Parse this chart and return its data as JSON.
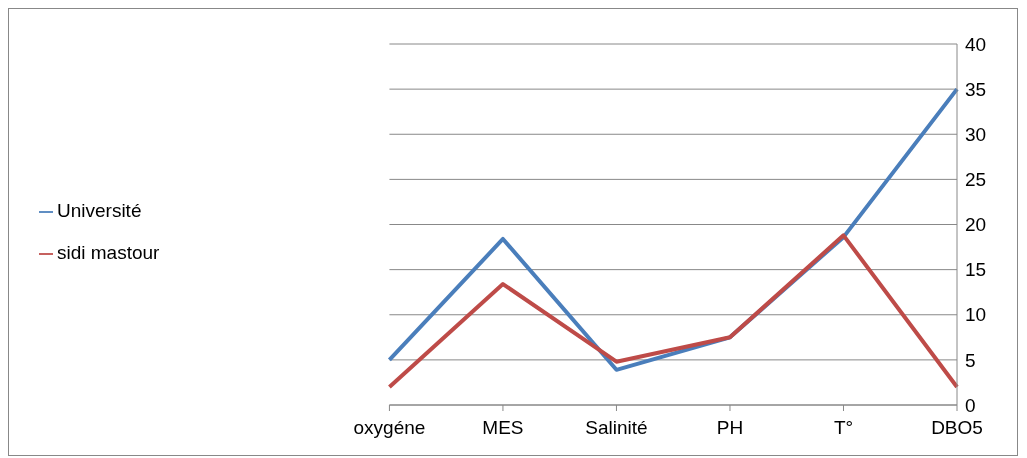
{
  "chart_data": {
    "type": "line",
    "categories": [
      "oxygéne",
      "MES",
      "Salinité",
      "PH",
      "T°",
      "DBO5"
    ],
    "series": [
      {
        "name": "Université",
        "color": "#4a7ebb",
        "values": [
          5,
          18.4,
          3.9,
          7.5,
          18.6,
          35
        ]
      },
      {
        "name": "sidi mastour",
        "color": "#be4b48",
        "values": [
          2,
          13.4,
          4.8,
          7.5,
          18.8,
          2
        ]
      }
    ],
    "ylim": [
      0,
      40
    ],
    "yticks": [
      0,
      5,
      10,
      15,
      20,
      25,
      30,
      35,
      40
    ],
    "grid": "y",
    "legend": "left",
    "marker": "none",
    "line_style": "solid"
  }
}
